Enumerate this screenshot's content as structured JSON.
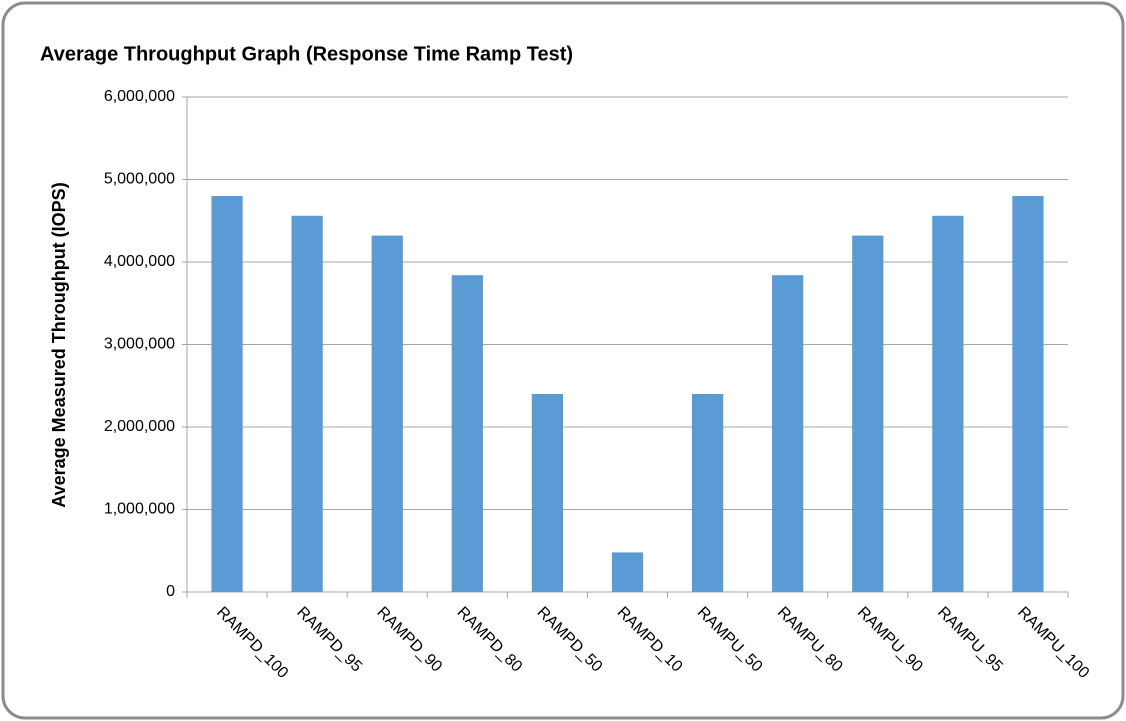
{
  "chart_data": {
    "type": "bar",
    "title": "Average Throughput Graph (Response Time Ramp Test)",
    "y_label": "Average Measured Throughput (IOPS)",
    "categories": [
      "RAMPD_100",
      "RAMPD_95",
      "RAMPD_90",
      "RAMPD_80",
      "RAMPD_50",
      "RAMPD_10",
      "RAMPU_50",
      "RAMPU_80",
      "RAMPU_90",
      "RAMPU_95",
      "RAMPU_100"
    ],
    "values": [
      4800000,
      4560000,
      4320000,
      3840000,
      2400000,
      480000,
      2400000,
      3840000,
      4320000,
      4560000,
      4800000
    ],
    "color": "#5b9bd5",
    "ylim": [
      0,
      6000000
    ],
    "yticks": [
      0,
      {
        "value": 1000000,
        "label": "1,000,000"
      },
      {
        "value": 2000000,
        "label": "2,000,000"
      },
      {
        "value": 3000000,
        "label": "3,000,000"
      },
      {
        "value": 4000000,
        "label": "4,000,000"
      },
      {
        "value": 5000000,
        "label": "5,000,000"
      },
      {
        "value": 6000000,
        "label": "6,000,000"
      }
    ],
    "grid": true
  }
}
